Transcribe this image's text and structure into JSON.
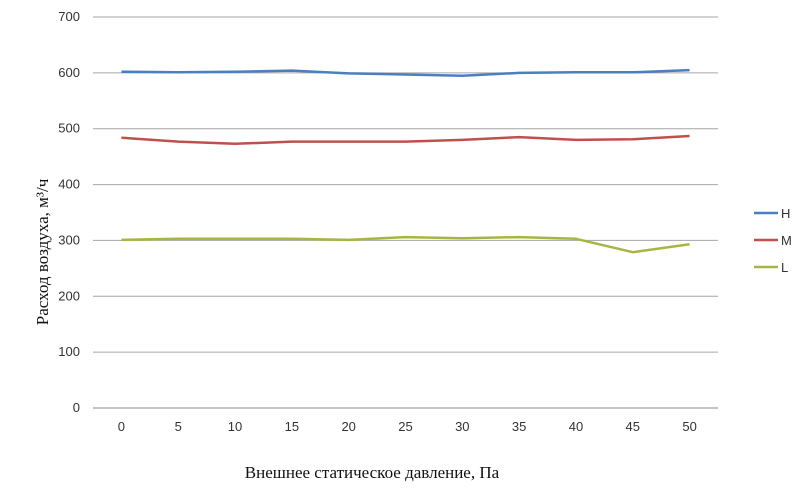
{
  "chart_data": {
    "type": "line",
    "title": "",
    "xlabel": "Внешнее статическое давление, Па",
    "ylabel": "Расход воздуха, м³/ч",
    "categories": [
      "0",
      "5",
      "10",
      "15",
      "20",
      "25",
      "30",
      "35",
      "40",
      "45",
      "50"
    ],
    "ylim": [
      0,
      700
    ],
    "yticks": [
      0,
      100,
      200,
      300,
      400,
      500,
      600,
      700
    ],
    "grid": true,
    "legend_position": "right",
    "series": [
      {
        "name": "H",
        "color": "#4a7fc1",
        "values": [
          602,
          601,
          602,
          604,
          599,
          597,
          595,
          600,
          601,
          601,
          605
        ]
      },
      {
        "name": "M",
        "color": "#c0504d",
        "values": [
          484,
          477,
          473,
          477,
          477,
          477,
          480,
          485,
          480,
          481,
          487
        ]
      },
      {
        "name": "L",
        "color": "#a8b545",
        "values": [
          301,
          303,
          303,
          303,
          301,
          306,
          304,
          306,
          303,
          279,
          293
        ]
      }
    ]
  }
}
